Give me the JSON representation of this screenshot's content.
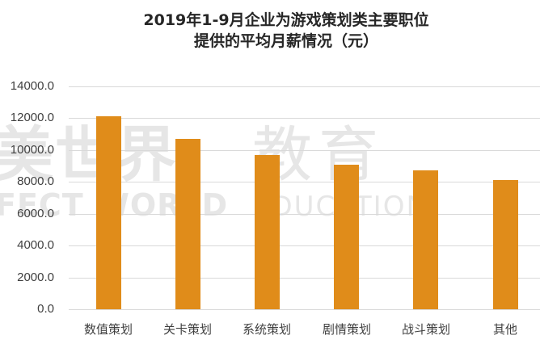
{
  "chart_data": {
    "type": "bar",
    "title": "2019年1-9月企业为游戏策划类主要职位提供的平均月薪情况（元）",
    "title_lines": [
      "2019年1-9月企业为游戏策划类主要职位",
      "提供的平均月薪情况（元）"
    ],
    "categories": [
      "数值策划",
      "关卡策划",
      "系统策划",
      "剧情策划",
      "战斗策划",
      "其他"
    ],
    "values": [
      12100,
      10700,
      9700,
      9100,
      8700,
      8100
    ],
    "xlabel": "",
    "ylabel": "",
    "ylim": [
      0,
      14000
    ],
    "yticks": [
      "0.0",
      "2000.0",
      "4000.0",
      "6000.0",
      "8000.0",
      "10000.0",
      "12000.0",
      "14000.0"
    ],
    "grid": true,
    "legend": null,
    "bar_color": "#E08C1A"
  },
  "watermark": {
    "line1_left": "美世界",
    "line1_right": "教育",
    "line2_left": "FECT WORLD",
    "line2_right": "EDUCATION"
  }
}
